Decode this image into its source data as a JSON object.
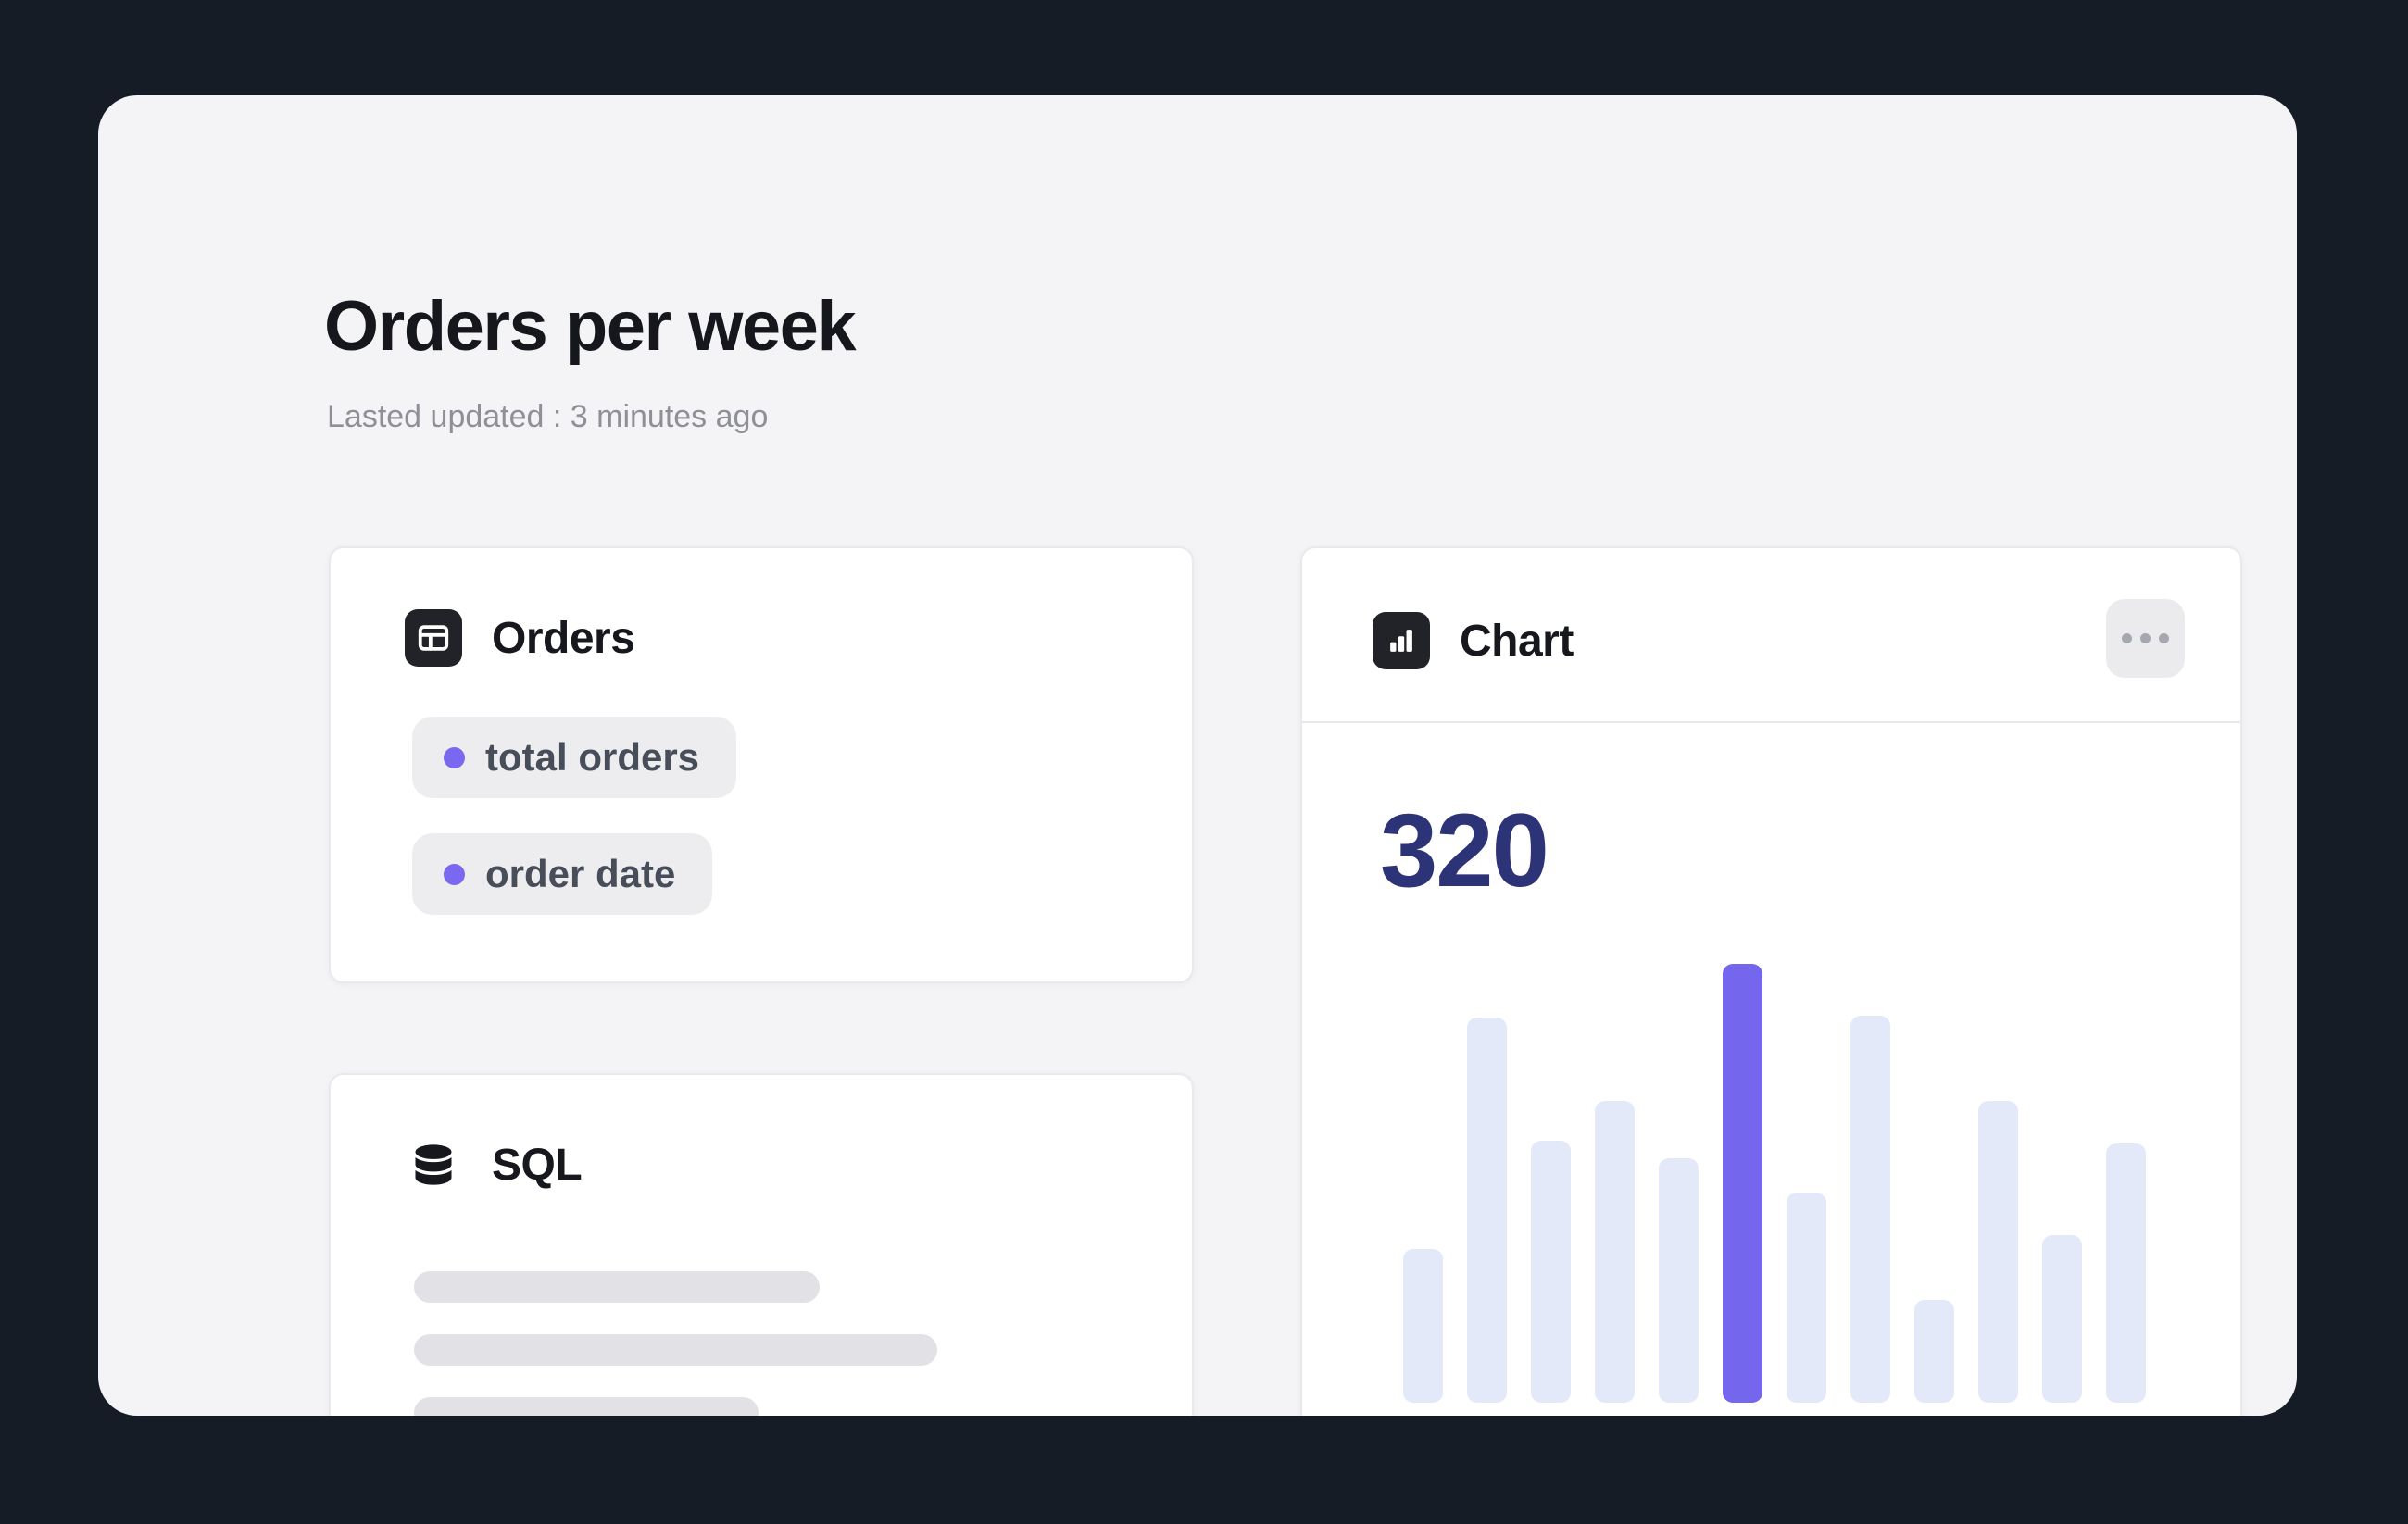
{
  "page": {
    "title": "Orders per week",
    "subtitle": "Lasted updated : 3 minutes ago"
  },
  "orders_card": {
    "title": "Orders",
    "fields": [
      {
        "label": "total orders"
      },
      {
        "label": "order date"
      }
    ]
  },
  "sql_card": {
    "title": "SQL"
  },
  "chart_card": {
    "title": "Chart",
    "value": "320"
  },
  "chart_data": {
    "type": "bar",
    "title": "Orders per week",
    "current_value_label": "320",
    "values": [
      112,
      281,
      191,
      220,
      178,
      320,
      153,
      282,
      75,
      220,
      122,
      189
    ],
    "highlight_index": 5,
    "ymax": 320,
    "bar_color": "#e3e9f8",
    "highlight_color": "#7566ee",
    "grid": false,
    "axes_visible": false,
    "legend": "none"
  },
  "colors": {
    "page_background": "#161c26",
    "board_background": "#f4f4f6",
    "card_background": "#ffffff",
    "accent_purple": "#7a68f0",
    "value_color": "#2c3377"
  }
}
